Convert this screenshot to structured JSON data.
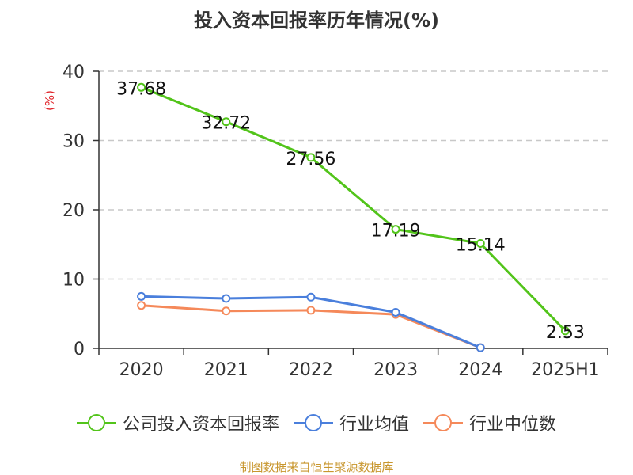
{
  "chart_data": {
    "type": "line",
    "title": "投入资本回报率历年情况(%)",
    "ylabel": "(%)",
    "xlabel": "",
    "categories": [
      "2020",
      "2021",
      "2022",
      "2023",
      "2024",
      "2025H1"
    ],
    "ylim": [
      0,
      40
    ],
    "yticks": [
      0,
      10,
      20,
      30,
      40
    ],
    "grid": true,
    "legend_position": "bottom",
    "series": [
      {
        "name": "公司投入资本回报率",
        "color": "#52c41a",
        "values": [
          37.68,
          32.72,
          27.56,
          17.19,
          15.14,
          2.53
        ],
        "labels": [
          "37.68",
          "32.72",
          "27.56",
          "17.19",
          "15.14",
          "2.53"
        ]
      },
      {
        "name": "行业均值",
        "color": "#4a7fdc",
        "values": [
          7.5,
          7.2,
          7.4,
          5.2,
          0.1,
          null
        ]
      },
      {
        "name": "行业中位数",
        "color": "#f5895a",
        "values": [
          6.2,
          5.4,
          5.5,
          4.9,
          0.1,
          null
        ]
      }
    ]
  },
  "source": "制图数据来自恒生聚源数据库"
}
